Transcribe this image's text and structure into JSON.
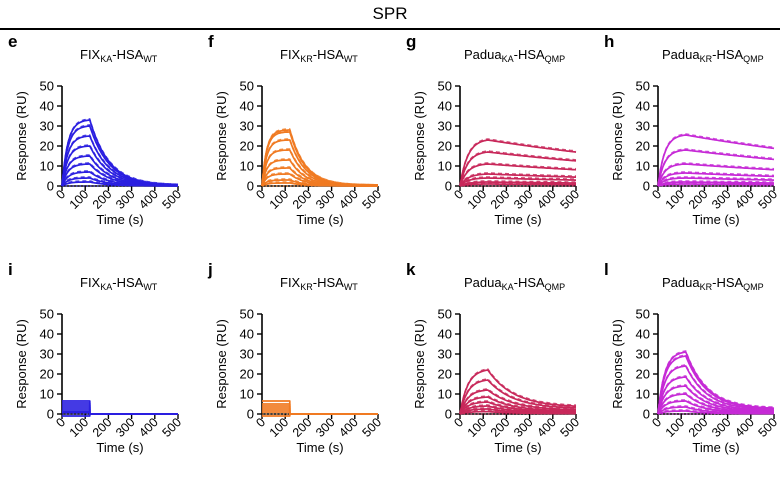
{
  "figure_title": "SPR",
  "colors": {
    "blue": "#2a1fe0",
    "orange": "#f07a22",
    "crimson": "#c8285a",
    "magenta": "#c62ad6"
  },
  "chart_data": [
    {
      "panel": "e",
      "type": "line",
      "title": "FIX_KA-HSA_WT",
      "title_parts": [
        [
          "FIX",
          ""
        ],
        [
          "KA",
          "sub"
        ],
        [
          "-HSA",
          ""
        ],
        [
          "WT",
          "sub"
        ]
      ],
      "xlabel": "Time (s)",
      "ylabel": "Response (RU)",
      "xlim": [
        0,
        500
      ],
      "ylim": [
        0,
        50
      ],
      "xticks": [
        0,
        100,
        200,
        300,
        400,
        500
      ],
      "yticks": [
        0,
        10,
        20,
        30,
        40,
        50
      ],
      "color": "#2a1fe0",
      "model": "kinetic",
      "injection_end": 120,
      "series_peaks": [
        33,
        30,
        25,
        20,
        15,
        11,
        7,
        4,
        2
      ],
      "association_rate": 0.04,
      "dissociation_rate": 0.012,
      "dissociation_floor": 0.0
    },
    {
      "panel": "f",
      "type": "line",
      "title": "FIX_KR-HSA_WT",
      "title_parts": [
        [
          "FIX",
          ""
        ],
        [
          "KR",
          "sub"
        ],
        [
          "-HSA",
          ""
        ],
        [
          "WT",
          "sub"
        ]
      ],
      "xlabel": "Time (s)",
      "ylabel": "Response (RU)",
      "xlim": [
        0,
        500
      ],
      "ylim": [
        0,
        50
      ],
      "xticks": [
        0,
        100,
        200,
        300,
        400,
        500
      ],
      "yticks": [
        0,
        10,
        20,
        30,
        40,
        50
      ],
      "color": "#f07a22",
      "model": "kinetic",
      "injection_end": 120,
      "series_peaks": [
        28,
        27,
        23,
        18,
        13,
        9,
        6,
        3,
        1.5
      ],
      "association_rate": 0.05,
      "dissociation_rate": 0.015,
      "dissociation_floor": 0.0
    },
    {
      "panel": "g",
      "type": "line",
      "title": "Padua_KA-HSA_QMP",
      "title_parts": [
        [
          "Padua",
          ""
        ],
        [
          "KA",
          "sub"
        ],
        [
          "-HSA",
          ""
        ],
        [
          "QMP",
          "sub"
        ]
      ],
      "xlabel": "Time (s)",
      "ylabel": "Response (RU)",
      "xlim": [
        0,
        500
      ],
      "ylim": [
        0,
        50
      ],
      "xticks": [
        0,
        100,
        200,
        300,
        400,
        500
      ],
      "yticks": [
        0,
        10,
        20,
        30,
        40,
        50
      ],
      "color": "#c8285a",
      "model": "kinetic",
      "injection_end": 120,
      "series_peaks": [
        23,
        17,
        11,
        6,
        4,
        2,
        1
      ],
      "association_rate": 0.03,
      "dissociation_rate": 0.0008,
      "dissociation_floor": 0.0
    },
    {
      "panel": "h",
      "type": "line",
      "title": "Padua_KR-HSA_QMP",
      "title_parts": [
        [
          "Padua",
          ""
        ],
        [
          "KR",
          "sub"
        ],
        [
          "-HSA",
          ""
        ],
        [
          "QMP",
          "sub"
        ]
      ],
      "xlabel": "Time (s)",
      "ylabel": "Response (RU)",
      "xlim": [
        0,
        500
      ],
      "ylim": [
        0,
        50
      ],
      "xticks": [
        0,
        100,
        200,
        300,
        400,
        500
      ],
      "yticks": [
        0,
        10,
        20,
        30,
        40,
        50
      ],
      "color": "#c62ad6",
      "model": "kinetic",
      "injection_end": 120,
      "series_peaks": [
        25.5,
        18,
        11,
        6.5,
        4,
        2,
        1
      ],
      "association_rate": 0.035,
      "dissociation_rate": 0.0008,
      "dissociation_floor": 0.0
    },
    {
      "panel": "i",
      "type": "line",
      "title": "FIX_KA-HSA_WT",
      "title_parts": [
        [
          "FIX",
          ""
        ],
        [
          "KA",
          "sub"
        ],
        [
          "-HSA",
          ""
        ],
        [
          "WT",
          "sub"
        ]
      ],
      "xlabel": "Time (s)",
      "ylabel": "Response (RU)",
      "xlim": [
        0,
        500
      ],
      "ylim": [
        0,
        50
      ],
      "xticks": [
        0,
        100,
        200,
        300,
        400,
        500
      ],
      "yticks": [
        0,
        10,
        20,
        30,
        40,
        50
      ],
      "color": "#2a1fe0",
      "model": "square",
      "injection_end": 120,
      "series_peaks": [
        6.5,
        5.5,
        4.5,
        3.5,
        2.5,
        1.5,
        0.8,
        -1
      ],
      "association_rate": 0.5,
      "dissociation_rate": 0.5,
      "dissociation_floor": 0.0
    },
    {
      "panel": "j",
      "type": "line",
      "title": "FIX_KR-HSA_WT",
      "title_parts": [
        [
          "FIX",
          ""
        ],
        [
          "KR",
          "sub"
        ],
        [
          "-HSA",
          ""
        ],
        [
          "WT",
          "sub"
        ]
      ],
      "xlabel": "Time (s)",
      "ylabel": "Response (RU)",
      "xlim": [
        0,
        500
      ],
      "ylim": [
        0,
        50
      ],
      "xticks": [
        0,
        100,
        200,
        300,
        400,
        500
      ],
      "yticks": [
        0,
        10,
        20,
        30,
        40,
        50
      ],
      "color": "#f07a22",
      "model": "square",
      "injection_end": 120,
      "series_peaks": [
        6.5,
        5,
        4,
        3,
        2,
        1,
        -1
      ],
      "association_rate": 0.5,
      "dissociation_rate": 0.5,
      "dissociation_floor": 0.0
    },
    {
      "panel": "k",
      "type": "line",
      "title": "Padua_KA-HSA_QMP",
      "title_parts": [
        [
          "Padua",
          ""
        ],
        [
          "KA",
          "sub"
        ],
        [
          "-HSA",
          ""
        ],
        [
          "QMP",
          "sub"
        ]
      ],
      "xlabel": "Time (s)",
      "ylabel": "Response (RU)",
      "xlim": [
        0,
        500
      ],
      "ylim": [
        0,
        50
      ],
      "xticks": [
        0,
        100,
        200,
        300,
        400,
        500
      ],
      "yticks": [
        0,
        10,
        20,
        30,
        40,
        50
      ],
      "color": "#c8285a",
      "model": "kinetic",
      "injection_end": 120,
      "series_peaks": [
        22,
        17,
        12,
        8.5,
        6,
        4,
        2.5,
        1.2
      ],
      "association_rate": 0.03,
      "dissociation_rate": 0.009,
      "dissociation_floor": 0.15
    },
    {
      "panel": "l",
      "type": "line",
      "title": "Padua_KR-HSA_QMP",
      "title_parts": [
        [
          "Padua",
          ""
        ],
        [
          "KR",
          "sub"
        ],
        [
          "-HSA",
          ""
        ],
        [
          "QMP",
          "sub"
        ]
      ],
      "xlabel": "Time (s)",
      "ylabel": "Response (RU)",
      "xlim": [
        0,
        500
      ],
      "ylim": [
        0,
        50
      ],
      "xticks": [
        0,
        100,
        200,
        300,
        400,
        500
      ],
      "yticks": [
        0,
        10,
        20,
        30,
        40,
        50
      ],
      "color": "#c62ad6",
      "model": "kinetic",
      "injection_end": 120,
      "series_peaks": [
        31,
        29,
        24,
        18.5,
        14,
        10,
        6.5,
        3.5,
        1.5
      ],
      "association_rate": 0.035,
      "dissociation_rate": 0.011,
      "dissociation_floor": 0.08
    }
  ]
}
